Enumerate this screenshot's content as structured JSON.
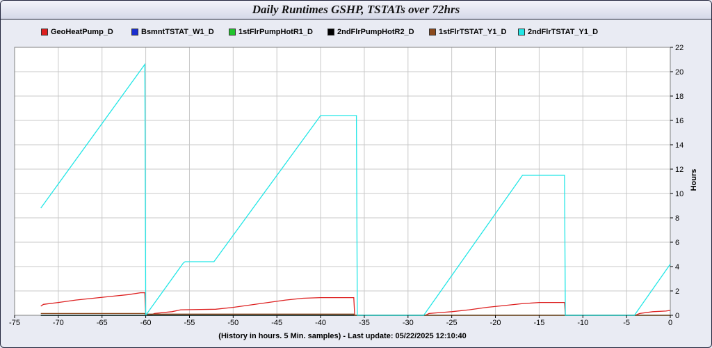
{
  "title": "Daily Runtimes GSHP, TSTATs over 72hrs",
  "chart_data": {
    "type": "line",
    "title": "Daily Runtimes GSHP, TSTATs over 72hrs",
    "xlabel": "(History in hours. 5 Min. samples) - Last update: 05/22/2025 12:10:40",
    "ylabel": "Hours",
    "xlim": [
      -75,
      0
    ],
    "ylim": [
      0,
      22
    ],
    "x_ticks": [
      -75,
      -70,
      -65,
      -60,
      -55,
      -50,
      -45,
      -40,
      -35,
      -30,
      -25,
      -20,
      -15,
      -10,
      -5,
      0
    ],
    "y_ticks": [
      0,
      2,
      4,
      6,
      8,
      10,
      12,
      14,
      16,
      18,
      20,
      22
    ],
    "grid": true,
    "legend_position": "top",
    "series": [
      {
        "name": "GeoHeatPump_D",
        "color": "#dd1f1f",
        "points": [
          [
            -72,
            0.75
          ],
          [
            -71.7,
            0.9
          ],
          [
            -70,
            1.05
          ],
          [
            -68,
            1.25
          ],
          [
            -66,
            1.4
          ],
          [
            -64,
            1.55
          ],
          [
            -62,
            1.7
          ],
          [
            -60.6,
            1.85
          ],
          [
            -60.1,
            1.85
          ],
          [
            -60,
            0
          ],
          [
            -59.5,
            0
          ],
          [
            -59,
            0.15
          ],
          [
            -57,
            0.3
          ],
          [
            -56,
            0.45
          ],
          [
            -52,
            0.5
          ],
          [
            -50,
            0.65
          ],
          [
            -48,
            0.85
          ],
          [
            -46,
            1.05
          ],
          [
            -44,
            1.25
          ],
          [
            -42,
            1.4
          ],
          [
            -40,
            1.45
          ],
          [
            -36.2,
            1.45
          ],
          [
            -36.1,
            0
          ],
          [
            -28,
            0
          ],
          [
            -27.6,
            0.15
          ],
          [
            -25,
            0.3
          ],
          [
            -23,
            0.45
          ],
          [
            -21,
            0.65
          ],
          [
            -19,
            0.8
          ],
          [
            -17,
            0.95
          ],
          [
            -15,
            1.05
          ],
          [
            -12.1,
            1.05
          ],
          [
            -12,
            0
          ],
          [
            -4,
            0
          ],
          [
            -3.5,
            0.15
          ],
          [
            -2,
            0.3
          ],
          [
            -0.5,
            0.35
          ],
          [
            0,
            0.4
          ]
        ]
      },
      {
        "name": "BsmntTSTAT_W1_D",
        "color": "#1a2ecf",
        "points": [
          [
            -72,
            0
          ],
          [
            0,
            0
          ]
        ]
      },
      {
        "name": "1stFlrPumpHotR1_D",
        "color": "#22c52e",
        "points": [
          [
            -72,
            0
          ],
          [
            0,
            0
          ]
        ]
      },
      {
        "name": "2ndFlrPumpHotR2_D",
        "color": "#000000",
        "points": [
          [
            -72,
            0
          ],
          [
            0,
            0
          ]
        ]
      },
      {
        "name": "1stFlrTSTAT_Y1_D",
        "color": "#8b4a1d",
        "points": [
          [
            -72,
            0.15
          ],
          [
            -60.1,
            0.15
          ],
          [
            -60,
            0
          ],
          [
            -59.9,
            0.1
          ],
          [
            -36.2,
            0.1
          ],
          [
            -36.1,
            0
          ],
          [
            0,
            0
          ]
        ]
      },
      {
        "name": "2ndFlrTSTAT_Y1_D",
        "color": "#22e6e6",
        "points": [
          [
            -72,
            8.8
          ],
          [
            -60.1,
            20.6
          ],
          [
            -60,
            0
          ],
          [
            -55.7,
            4.3
          ],
          [
            -55.5,
            4.4
          ],
          [
            -52.2,
            4.4
          ],
          [
            -40,
            16.4
          ],
          [
            -35.9,
            16.4
          ],
          [
            -35.8,
            0
          ],
          [
            -28.2,
            0
          ],
          [
            -16.9,
            11.5
          ],
          [
            -12.1,
            11.5
          ],
          [
            -12.0,
            0
          ],
          [
            -4.1,
            0
          ],
          [
            0,
            4.2
          ]
        ]
      }
    ]
  }
}
